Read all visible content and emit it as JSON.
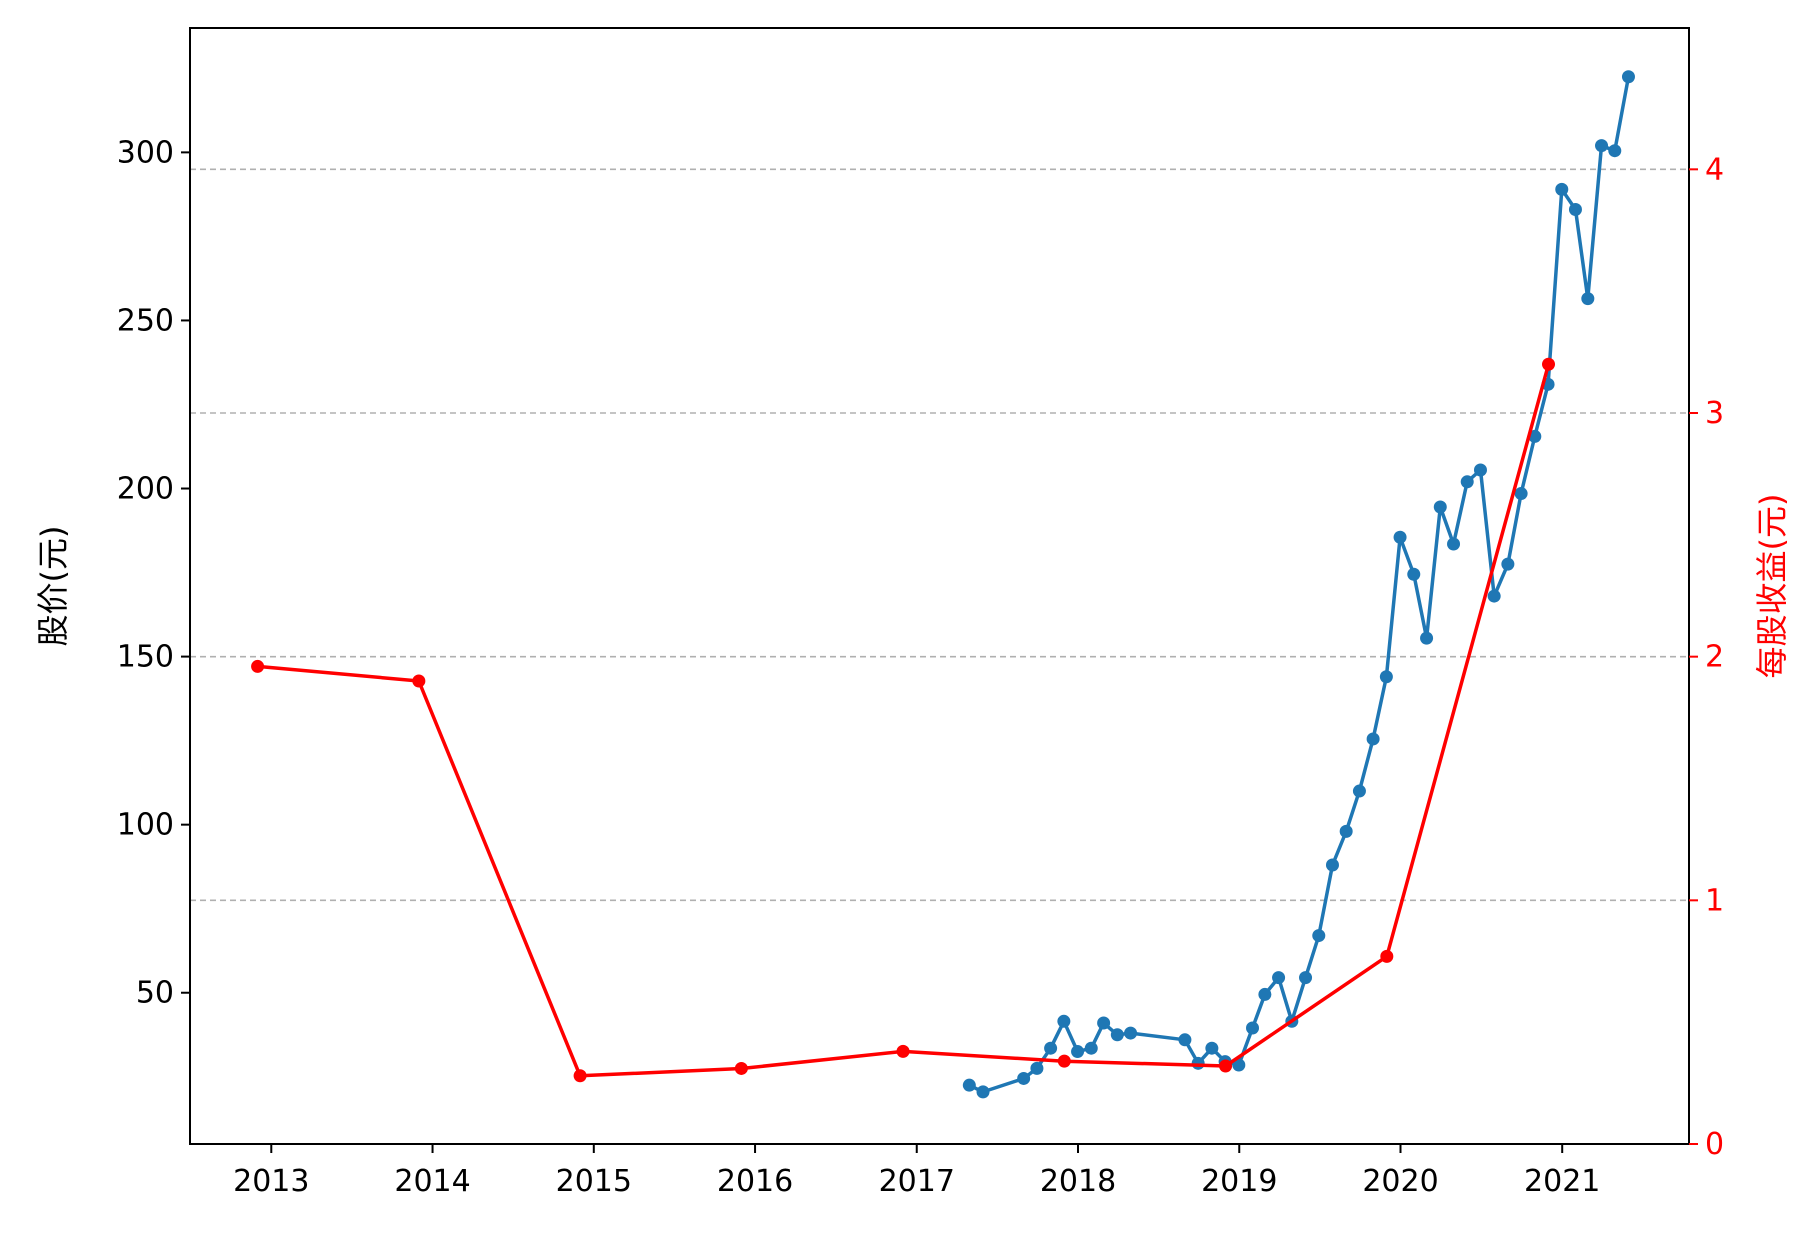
{
  "chart_data": {
    "type": "line",
    "title": "",
    "xlabel": "",
    "ylabel_left": "股价(元)",
    "ylabel_right": "每股收益(元)",
    "x_ticks": [
      "2013",
      "2014",
      "2015",
      "2016",
      "2017",
      "2018",
      "2019",
      "2020",
      "2021"
    ],
    "y_left_ticks": [
      50,
      100,
      150,
      200,
      250,
      300
    ],
    "y_right_ticks": [
      0,
      1,
      2,
      3,
      4
    ],
    "x_range": [
      "2012-07-01",
      "2021-10-15"
    ],
    "y_left_range": [
      5,
      337
    ],
    "y_right_range": [
      0,
      4.58
    ],
    "grid": "horizontal dashed at right-axis ticks",
    "colors": {
      "price": "#1f77b4",
      "eps": "#ff0000",
      "grid": "#b0b0b0",
      "right_axis": "#ff0000"
    },
    "series": [
      {
        "axis": "left",
        "color": "#1f77b4",
        "points": [
          [
            "2017-04-30",
            22.5
          ],
          [
            "2017-05-31",
            20.5
          ],
          [
            "2017-08-31",
            24.5
          ],
          [
            "2017-09-30",
            27.5
          ],
          [
            "2017-10-31",
            33.5
          ],
          [
            "2017-11-30",
            41.5
          ],
          [
            "2017-12-31",
            32.5
          ],
          [
            "2018-01-31",
            33.5
          ],
          [
            "2018-02-28",
            41.0
          ],
          [
            "2018-03-31",
            37.5
          ],
          [
            "2018-04-30",
            38.0
          ],
          [
            "2018-08-31",
            36.0
          ],
          [
            "2018-09-30",
            29.0
          ],
          [
            "2018-10-31",
            33.5
          ],
          [
            "2018-11-30",
            29.5
          ],
          [
            "2018-12-31",
            28.5
          ],
          [
            "2019-01-31",
            39.5
          ],
          [
            "2019-02-28",
            49.5
          ],
          [
            "2019-03-31",
            54.5
          ],
          [
            "2019-04-30",
            41.5
          ],
          [
            "2019-05-31",
            54.5
          ],
          [
            "2019-06-30",
            67.0
          ],
          [
            "2019-07-31",
            88.0
          ],
          [
            "2019-08-31",
            98.0
          ],
          [
            "2019-09-30",
            110.0
          ],
          [
            "2019-10-31",
            125.5
          ],
          [
            "2019-11-30",
            144.0
          ],
          [
            "2019-12-31",
            185.5
          ],
          [
            "2020-01-31",
            174.5
          ],
          [
            "2020-02-29",
            155.5
          ],
          [
            "2020-03-31",
            194.5
          ],
          [
            "2020-04-30",
            183.5
          ],
          [
            "2020-05-31",
            202.0
          ],
          [
            "2020-06-30",
            205.5
          ],
          [
            "2020-07-31",
            168.0
          ],
          [
            "2020-08-31",
            177.5
          ],
          [
            "2020-09-30",
            198.5
          ],
          [
            "2020-10-31",
            215.5
          ],
          [
            "2020-11-30",
            231.0
          ],
          [
            "2020-12-31",
            289.0
          ],
          [
            "2021-01-31",
            283.0
          ],
          [
            "2021-02-28",
            256.5
          ],
          [
            "2021-03-31",
            302.0
          ],
          [
            "2021-04-30",
            300.5
          ],
          [
            "2021-05-31",
            322.5
          ]
        ]
      },
      {
        "axis": "right",
        "color": "#ff0000",
        "points": [
          [
            "2012-12-01",
            1.96
          ],
          [
            "2013-12-01",
            1.9
          ],
          [
            "2014-12-01",
            0.28
          ],
          [
            "2015-12-01",
            0.31
          ],
          [
            "2016-12-01",
            0.38
          ],
          [
            "2017-12-01",
            0.34
          ],
          [
            "2018-12-01",
            0.32
          ],
          [
            "2019-12-01",
            0.77
          ],
          [
            "2020-12-01",
            3.2
          ]
        ]
      }
    ]
  }
}
